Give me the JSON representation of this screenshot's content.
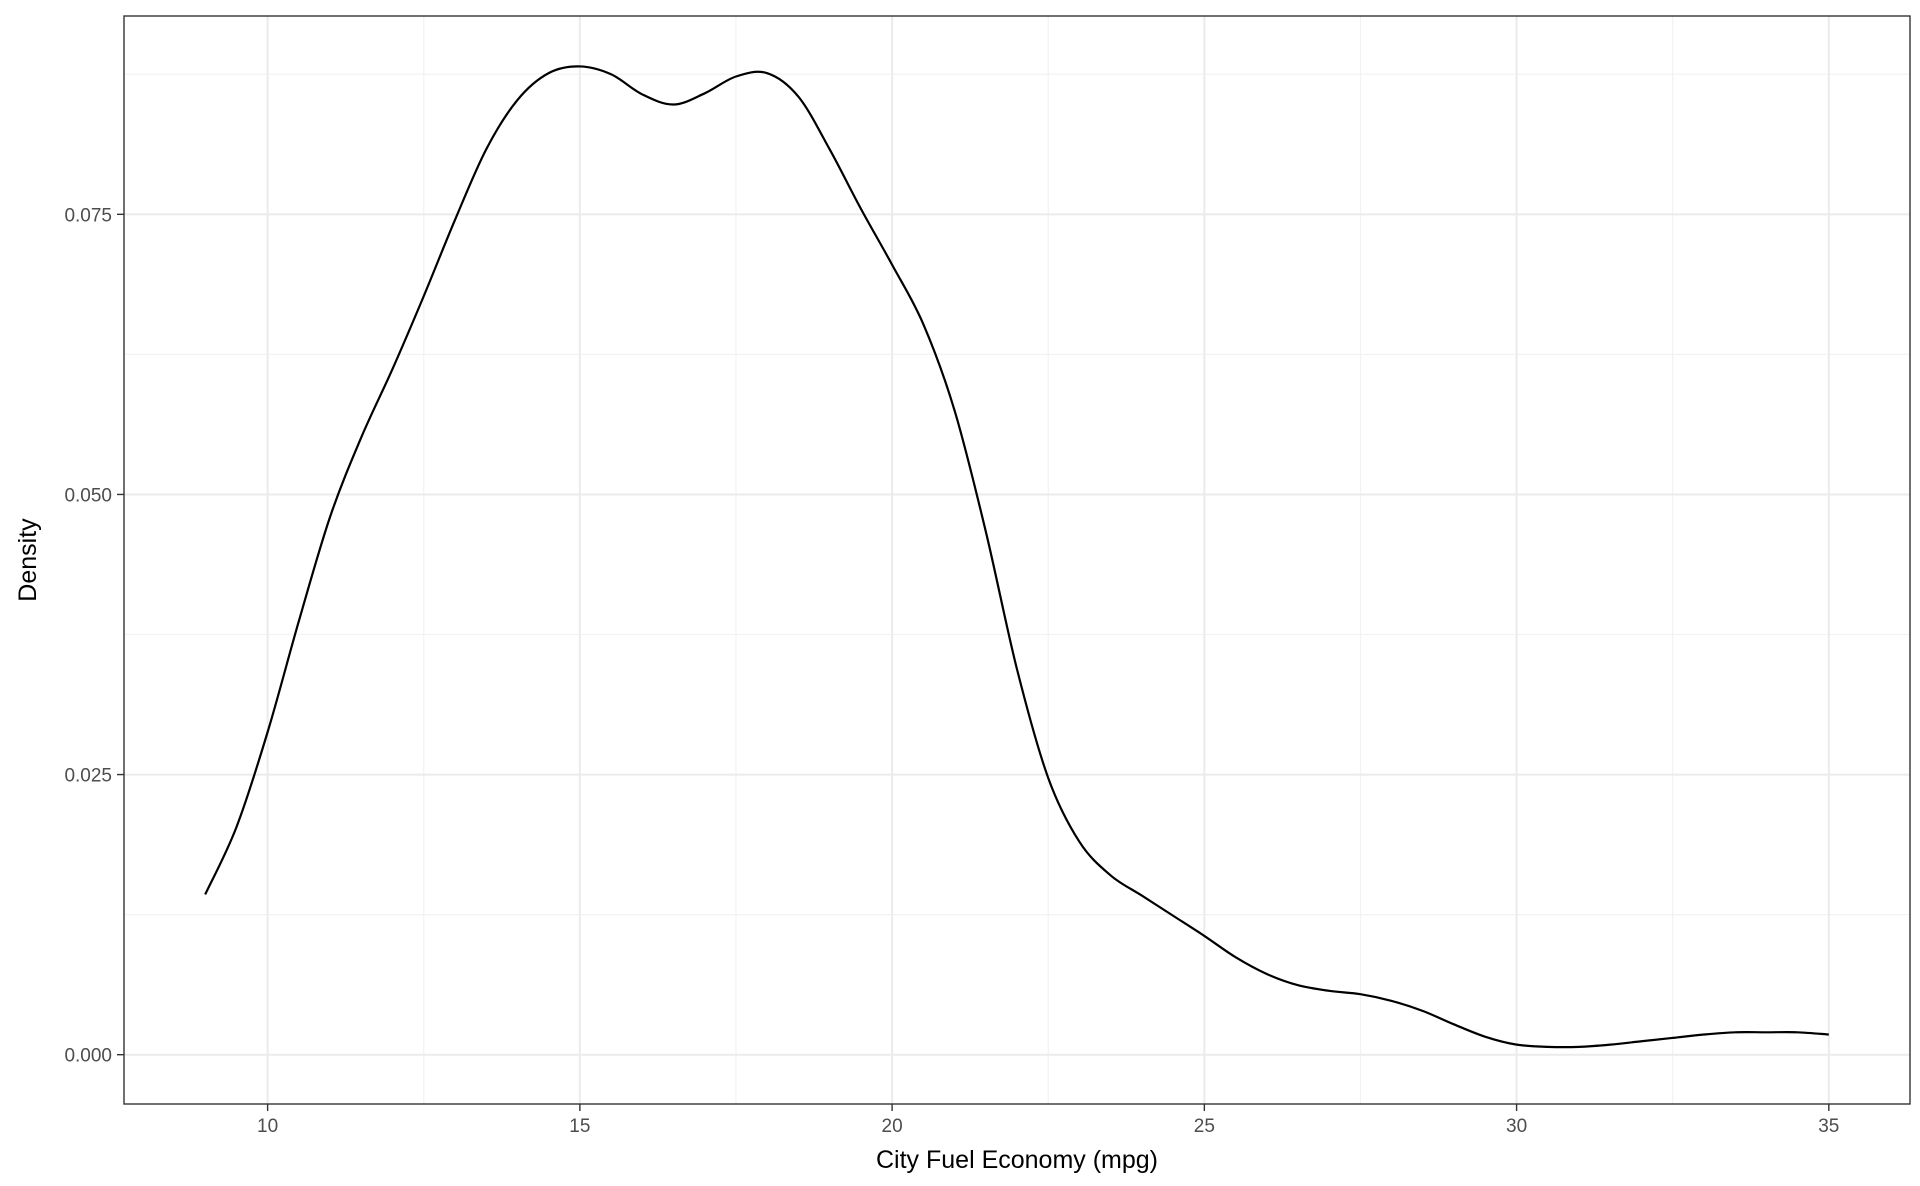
{
  "chart_data": {
    "type": "line",
    "subtype": "density",
    "title": "",
    "xlabel": "City Fuel Economy (mpg)",
    "ylabel": "Density",
    "xlim": [
      7.7,
      36.3
    ],
    "ylim": [
      -0.0044,
      0.0927
    ],
    "x_ticks": [
      10,
      15,
      20,
      25,
      30,
      35
    ],
    "x_tick_labels": [
      "10",
      "15",
      "20",
      "25",
      "30",
      "35"
    ],
    "y_ticks": [
      0,
      0.025,
      0.05,
      0.075
    ],
    "y_tick_labels": [
      "0.000",
      "0.025",
      "0.050",
      "0.075"
    ],
    "grid": true,
    "theme": "bw",
    "line_color": "#000000",
    "series": [
      {
        "x": [
          9.0,
          9.5,
          10.0,
          10.5,
          11.0,
          11.5,
          12.0,
          12.5,
          13.0,
          13.5,
          14.0,
          14.5,
          15.0,
          15.5,
          16.0,
          16.5,
          17.0,
          17.5,
          18.0,
          18.5,
          19.0,
          19.5,
          20.0,
          20.5,
          21.0,
          21.5,
          22.0,
          22.5,
          23.0,
          23.5,
          24.0,
          24.5,
          25.0,
          25.5,
          26.0,
          26.5,
          27.0,
          27.5,
          28.0,
          28.5,
          29.0,
          29.5,
          30.0,
          30.5,
          31.0,
          31.5,
          32.0,
          32.5,
          33.0,
          33.5,
          34.0,
          34.5,
          35.0
        ],
        "y": [
          0.0143,
          0.0203,
          0.0288,
          0.0387,
          0.048,
          0.0551,
          0.0612,
          0.0677,
          0.0745,
          0.0808,
          0.0852,
          0.0876,
          0.0882,
          0.0875,
          0.0857,
          0.0848,
          0.0858,
          0.0873,
          0.0876,
          0.0855,
          0.0808,
          0.0755,
          0.0705,
          0.0652,
          0.0575,
          0.0467,
          0.0344,
          0.0247,
          0.019,
          0.016,
          0.0142,
          0.0124,
          0.0106,
          0.0087,
          0.0072,
          0.0062,
          0.0057,
          0.0054,
          0.0048,
          0.0039,
          0.0027,
          0.0016,
          0.0009,
          0.0007,
          0.0007,
          0.0009,
          0.0012,
          0.0015,
          0.0018,
          0.002,
          0.002,
          0.002,
          0.0018
        ]
      }
    ]
  }
}
